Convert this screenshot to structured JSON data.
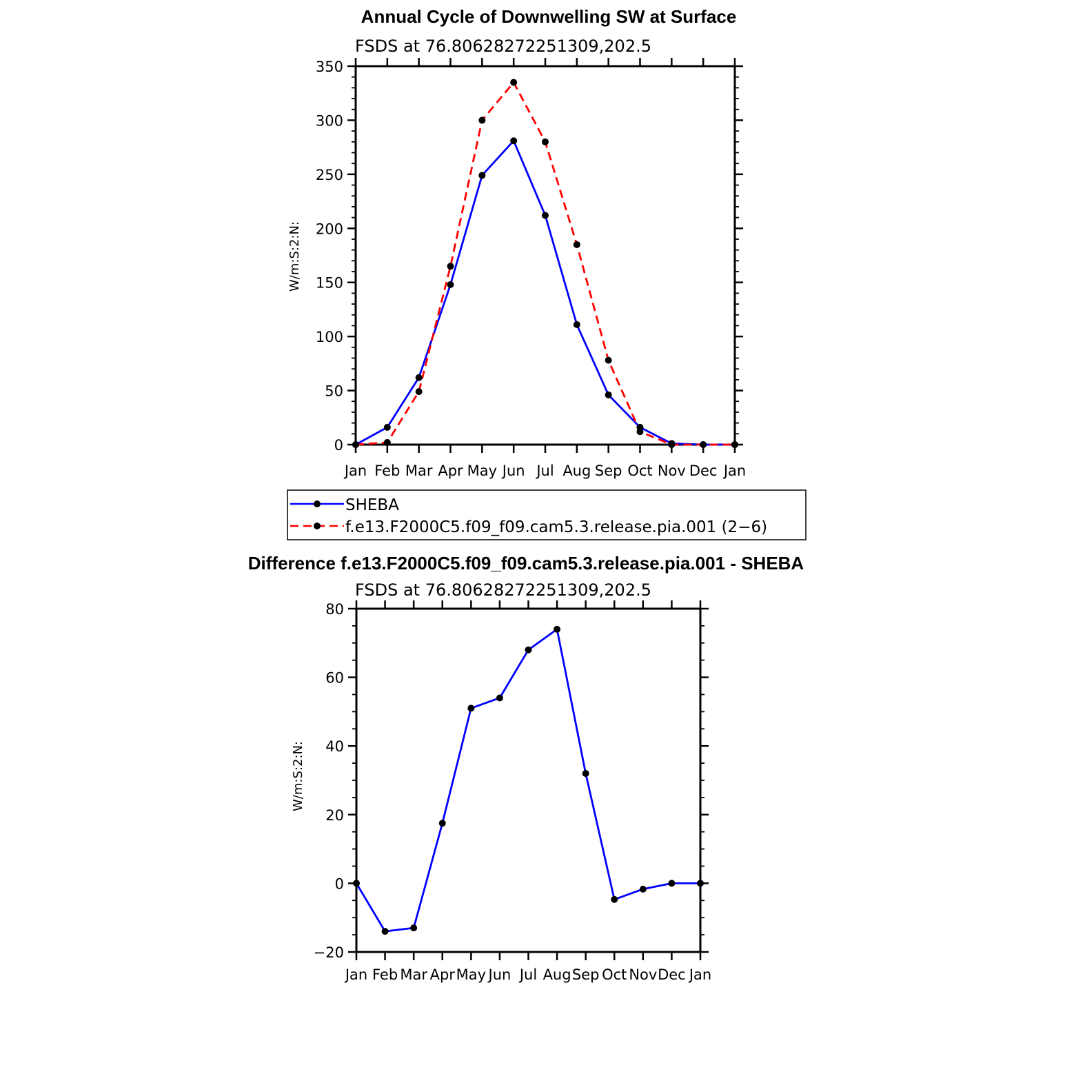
{
  "chart_data": [
    {
      "type": "line",
      "title": "Annual Cycle of Downwelling SW at Surface",
      "subtitle": "FSDS at 76.80628272251309,202.5",
      "ylabel": "W/m:S:2:N:",
      "xlabel": "",
      "categories": [
        "Jan",
        "Feb",
        "Mar",
        "Apr",
        "May",
        "Jun",
        "Jul",
        "Aug",
        "Sep",
        "Oct",
        "Nov",
        "Dec",
        "Jan"
      ],
      "ylim": [
        0,
        350
      ],
      "yticks": [
        "0",
        "50",
        "100",
        "150",
        "200",
        "250",
        "300",
        "350"
      ],
      "series": [
        {
          "name": "SHEBA",
          "color": "#0000ff",
          "dash": "none",
          "values": [
            0,
            16,
            62,
            148,
            249,
            281,
            212,
            111,
            46,
            16,
            1,
            0,
            0
          ]
        },
        {
          "name": "f.e13.F2000C5.f09_f09.cam5.3.release.pia.001 (2−6)",
          "color": "#ff0000",
          "dash": "dashed",
          "values": [
            0,
            2,
            49,
            165,
            300,
            335,
            280,
            185,
            78,
            12,
            0,
            0,
            0
          ]
        }
      ],
      "legend": {
        "position": "below"
      }
    },
    {
      "type": "line",
      "title": "Difference f.e13.F2000C5.f09_f09.cam5.3.release.pia.001 - SHEBA",
      "subtitle": "FSDS at 76.80628272251309,202.5",
      "ylabel": "W/m:S:2:N:",
      "xlabel": "",
      "categories": [
        "Jan",
        "Feb",
        "Mar",
        "Apr",
        "May",
        "Jun",
        "Jul",
        "Aug",
        "Sep",
        "Oct",
        "Nov",
        "Dec",
        "Jan"
      ],
      "ylim": [
        -20,
        80
      ],
      "yticks": [
        "−20",
        "0",
        "20",
        "40",
        "60",
        "80"
      ],
      "series": [
        {
          "name": "Difference",
          "color": "#0000ff",
          "dash": "none",
          "values": [
            0,
            -14,
            -13,
            17.5,
            51,
            54,
            68,
            74,
            32,
            -4.7,
            -1.7,
            0,
            0
          ]
        }
      ]
    }
  ]
}
